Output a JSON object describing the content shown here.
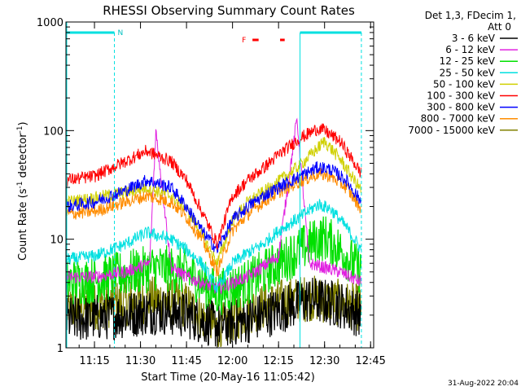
{
  "chart_data": {
    "type": "line",
    "title": "RHESSI Observing Summary Count Rates",
    "xlabel": "Start Time (20-May-16 11:05:42)",
    "ylabel_main": "Count Rate (s",
    "ylabel_sup1": "-1",
    "ylabel_mid": " detector",
    "ylabel_sup2": "-1",
    "ylabel_end": ")",
    "xlim": [
      "11:05:42",
      "12:46:00"
    ],
    "ylim": [
      1,
      1000
    ],
    "yscale": "log",
    "x_ticks": [
      "11:15",
      "11:30",
      "11:45",
      "12:00",
      "12:15",
      "12:30",
      "12:45"
    ],
    "y_ticks": [
      "1",
      "10",
      "100",
      "1000"
    ],
    "legend_header": [
      "Det 1,3, FDecim 1,",
      "Att 0"
    ],
    "legend_placement": "right",
    "footer_date": "31-Aug-2022 20:04",
    "flag_labels": {
      "night": "N",
      "flare": "F"
    },
    "series": [
      {
        "name": "3 - 6 keV",
        "color": "#000000",
        "x": [
          "11:06",
          "11:15",
          "11:25",
          "11:35",
          "11:45",
          "11:55",
          "12:05",
          "12:15",
          "12:25",
          "12:35",
          "12:42"
        ],
        "y": [
          1.8,
          1.9,
          2.0,
          2.2,
          2.0,
          1.6,
          1.8,
          2.2,
          2.8,
          2.5,
          2.0
        ]
      },
      {
        "name": "6 - 12 keV",
        "color": "#e020e0",
        "x": [
          "11:06",
          "11:15",
          "11:25",
          "11:33",
          "11:35",
          "11:40",
          "11:45",
          "11:55",
          "12:05",
          "12:15",
          "12:21",
          "12:25",
          "12:35",
          "12:42"
        ],
        "y": [
          4.5,
          4.5,
          5.0,
          6.0,
          100,
          5.5,
          4.5,
          3.5,
          4.5,
          7.0,
          130,
          6.0,
          5.0,
          4.0
        ]
      },
      {
        "name": "12 - 25 keV",
        "color": "#00e000",
        "x": [
          "11:06",
          "11:15",
          "11:25",
          "11:35",
          "11:45",
          "11:55",
          "12:05",
          "12:15",
          "12:25",
          "12:30",
          "12:35",
          "12:42"
        ],
        "y": [
          4.0,
          4.2,
          4.8,
          5.5,
          5.0,
          3.2,
          4.0,
          6.0,
          9.0,
          10.5,
          8.0,
          5.0
        ]
      },
      {
        "name": "25 - 50 keV",
        "color": "#00e0e0",
        "x": [
          "11:06",
          "11:15",
          "11:25",
          "11:32",
          "11:40",
          "11:45",
          "11:50",
          "11:55",
          "12:00",
          "12:05",
          "12:10",
          "12:15",
          "12:22",
          "12:28",
          "12:32",
          "12:37",
          "12:42"
        ],
        "y": [
          6.5,
          7.0,
          9.0,
          11.5,
          10.0,
          8.0,
          6.0,
          3.5,
          6.0,
          7.5,
          9.0,
          12.0,
          16.0,
          21.0,
          19.0,
          13.0,
          8.0
        ]
      },
      {
        "name": "50 - 100 keV",
        "color": "#d0d000",
        "x": [
          "11:06",
          "11:15",
          "11:25",
          "11:32",
          "11:40",
          "11:45",
          "11:50",
          "11:55",
          "12:00",
          "12:05",
          "12:10",
          "12:15",
          "12:22",
          "12:28",
          "12:30",
          "12:35",
          "12:42"
        ],
        "y": [
          22,
          24,
          27,
          30,
          25,
          19,
          11,
          6,
          15,
          22,
          27,
          34,
          48,
          70,
          80,
          55,
          28
        ]
      },
      {
        "name": "100 - 300 keV",
        "color": "#ff0000",
        "x": [
          "11:06",
          "11:15",
          "11:25",
          "11:32",
          "11:40",
          "11:45",
          "11:50",
          "11:55",
          "12:00",
          "12:05",
          "12:10",
          "12:15",
          "12:22",
          "12:28",
          "12:30",
          "12:35",
          "12:42"
        ],
        "y": [
          35,
          38,
          52,
          65,
          52,
          35,
          18,
          9,
          25,
          35,
          45,
          60,
          85,
          105,
          100,
          80,
          40
        ]
      },
      {
        "name": "300 - 800 keV",
        "color": "#0000ff",
        "x": [
          "11:06",
          "11:15",
          "11:25",
          "11:32",
          "11:40",
          "11:45",
          "11:50",
          "11:55",
          "12:00",
          "12:05",
          "12:10",
          "12:15",
          "12:22",
          "12:28",
          "12:32",
          "12:37",
          "12:42"
        ],
        "y": [
          20,
          22,
          28,
          35,
          30,
          20,
          12,
          8,
          15,
          20,
          25,
          30,
          38,
          46,
          44,
          35,
          22
        ]
      },
      {
        "name": "800 - 7000 keV",
        "color": "#ff8c00",
        "x": [
          "11:06",
          "11:15",
          "11:25",
          "11:32",
          "11:40",
          "11:45",
          "11:50",
          "11:55",
          "12:00",
          "12:05",
          "12:10",
          "12:15",
          "12:22",
          "12:28",
          "12:32",
          "12:37",
          "12:42"
        ],
        "y": [
          17,
          18,
          22,
          25,
          22,
          16,
          10,
          5,
          12,
          17,
          22,
          27,
          34,
          40,
          38,
          30,
          19
        ]
      },
      {
        "name": "7000 - 15000 keV",
        "color": "#808000",
        "x": [
          "11:06",
          "11:15",
          "11:25",
          "11:35",
          "11:45",
          "11:55",
          "12:05",
          "12:15",
          "12:25",
          "12:35",
          "12:42"
        ],
        "y": [
          2.2,
          2.4,
          2.6,
          2.8,
          2.5,
          1.5,
          2.2,
          2.6,
          2.9,
          2.6,
          2.3
        ]
      }
    ],
    "night_segments": [
      [
        "11:05:42",
        "11:21:30"
      ],
      [
        "12:22:00",
        "12:42:00"
      ]
    ],
    "flare_segments": [
      [
        "12:06:30",
        "12:08:30"
      ],
      [
        "12:15:30",
        "12:17:00"
      ]
    ],
    "attenuator_markers": [
      "11:05:42",
      "12:22:00"
    ]
  }
}
